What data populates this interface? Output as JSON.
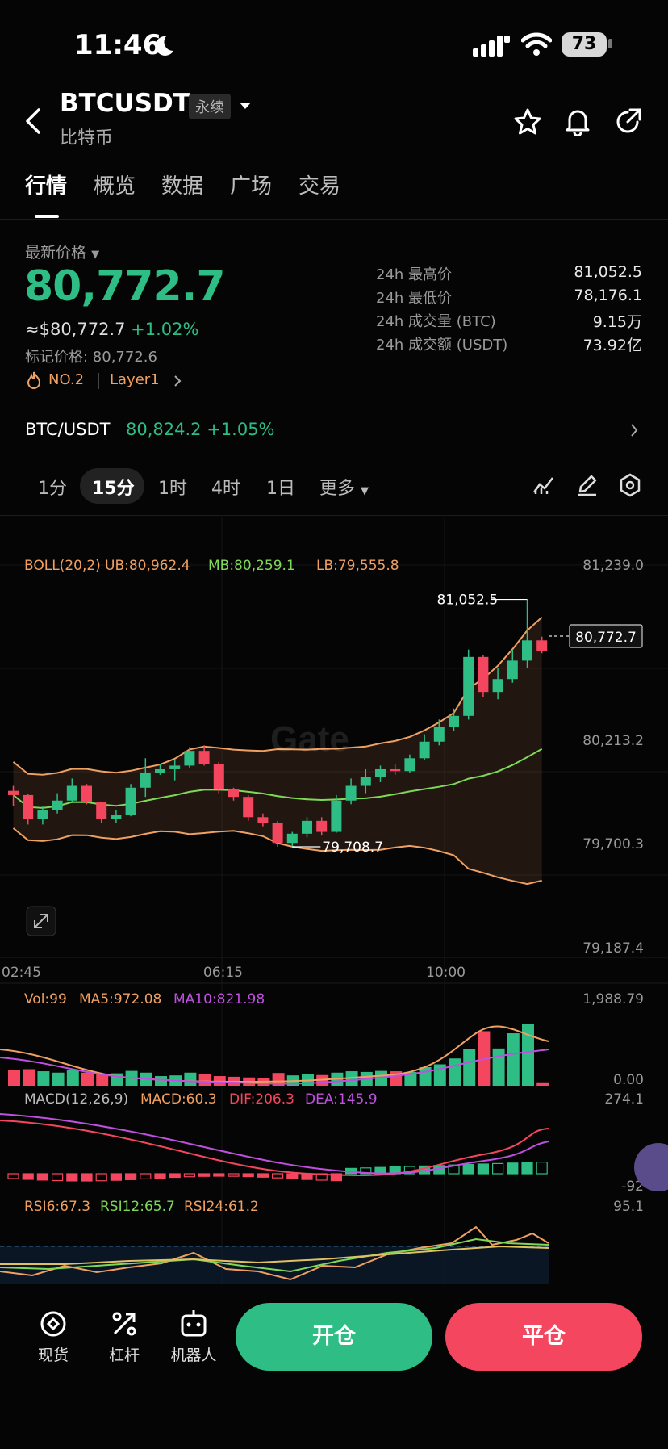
{
  "status": {
    "time": "11:46",
    "battery": "73"
  },
  "header": {
    "title": "BTCUSDT",
    "badge": "永续",
    "subtitle": "比特币"
  },
  "tabs": [
    "行情",
    "概览",
    "数据",
    "广场",
    "交易"
  ],
  "ticker": {
    "latest_label": "最新价格",
    "price": "80,772.7",
    "usd_price": "≈$80,772.7",
    "change": "+1.02%",
    "mark_price": "标记价格: 80,772.6",
    "tags": [
      "NO.2",
      "Layer1"
    ],
    "stats": [
      {
        "label": "24h 最高价",
        "value": "81,052.5"
      },
      {
        "label": "24h 最低价",
        "value": "78,176.1"
      },
      {
        "label": "24h 成交量 (BTC)",
        "value": "9.15万"
      },
      {
        "label": "24h 成交额 (USDT)",
        "value": "73.92亿"
      }
    ],
    "spot_pair": "BTC/USDT",
    "spot_price": "80,824.2",
    "spot_change": "+1.05%"
  },
  "intervals": [
    "1分",
    "15分",
    "1时",
    "4时",
    "1日",
    "更多"
  ],
  "colors": {
    "up": "#2dbd85",
    "down": "#f4465e",
    "accent_orange": "#f0a060"
  },
  "chart_data": {
    "type": "candlestick",
    "boll_legend": {
      "label": "BOLL(20,2)",
      "ub": "UB:80,962.4",
      "mb": "MB:80,259.1",
      "lb": "LB:79,555.8"
    },
    "y_ticks": [
      "81,239.0",
      "80,213.2",
      "79,700.3",
      "79,187.4"
    ],
    "x_ticks": [
      "02:45",
      "06:15",
      "10:00"
    ],
    "high_label": "81,052.5",
    "low_label": "79,708.7",
    "last_price_label": "80,772.7",
    "ylim": [
      79187.4,
      81239.0
    ],
    "watermark": "Gate",
    "candles": [
      {
        "o": 80013,
        "h": 80040,
        "l": 79930,
        "c": 79990
      },
      {
        "o": 79990,
        "h": 79995,
        "l": 79830,
        "c": 79860
      },
      {
        "o": 79860,
        "h": 79930,
        "l": 79830,
        "c": 79910
      },
      {
        "o": 79910,
        "h": 80000,
        "l": 79890,
        "c": 79960
      },
      {
        "o": 79960,
        "h": 80080,
        "l": 79950,
        "c": 80040
      },
      {
        "o": 80040,
        "h": 80050,
        "l": 79940,
        "c": 79950
      },
      {
        "o": 79950,
        "h": 79955,
        "l": 79840,
        "c": 79860
      },
      {
        "o": 79860,
        "h": 79910,
        "l": 79840,
        "c": 79880
      },
      {
        "o": 79880,
        "h": 80050,
        "l": 79875,
        "c": 80030
      },
      {
        "o": 80030,
        "h": 80190,
        "l": 79980,
        "c": 80110
      },
      {
        "o": 80110,
        "h": 80160,
        "l": 80100,
        "c": 80130
      },
      {
        "o": 80130,
        "h": 80180,
        "l": 80070,
        "c": 80150
      },
      {
        "o": 80150,
        "h": 80250,
        "l": 80140,
        "c": 80230
      },
      {
        "o": 80230,
        "h": 80260,
        "l": 80150,
        "c": 80160
      },
      {
        "o": 80160,
        "h": 80170,
        "l": 80000,
        "c": 80020
      },
      {
        "o": 80020,
        "h": 80030,
        "l": 79960,
        "c": 79980
      },
      {
        "o": 79980,
        "h": 79990,
        "l": 79850,
        "c": 79870
      },
      {
        "o": 79870,
        "h": 79890,
        "l": 79820,
        "c": 79840
      },
      {
        "o": 79840,
        "h": 79850,
        "l": 79710,
        "c": 79730
      },
      {
        "o": 79730,
        "h": 79790,
        "l": 79709,
        "c": 79780
      },
      {
        "o": 79780,
        "h": 79870,
        "l": 79760,
        "c": 79850
      },
      {
        "o": 79850,
        "h": 79870,
        "l": 79770,
        "c": 79790
      },
      {
        "o": 79790,
        "h": 79990,
        "l": 79785,
        "c": 79960
      },
      {
        "o": 79960,
        "h": 80080,
        "l": 79940,
        "c": 80040
      },
      {
        "o": 80040,
        "h": 80130,
        "l": 80000,
        "c": 80090
      },
      {
        "o": 80090,
        "h": 80150,
        "l": 80060,
        "c": 80130
      },
      {
        "o": 80130,
        "h": 80160,
        "l": 80100,
        "c": 80120
      },
      {
        "o": 80120,
        "h": 80210,
        "l": 80110,
        "c": 80190
      },
      {
        "o": 80190,
        "h": 80320,
        "l": 80180,
        "c": 80280
      },
      {
        "o": 80280,
        "h": 80400,
        "l": 80260,
        "c": 80360
      },
      {
        "o": 80360,
        "h": 80460,
        "l": 80340,
        "c": 80420
      },
      {
        "o": 80420,
        "h": 80780,
        "l": 80400,
        "c": 80740
      },
      {
        "o": 80740,
        "h": 80750,
        "l": 80520,
        "c": 80550
      },
      {
        "o": 80550,
        "h": 80680,
        "l": 80510,
        "c": 80620
      },
      {
        "o": 80620,
        "h": 80780,
        "l": 80600,
        "c": 80720
      },
      {
        "o": 80720,
        "h": 81052.5,
        "l": 80680,
        "c": 80830
      },
      {
        "o": 80830,
        "h": 80850,
        "l": 80760,
        "c": 80772.7
      }
    ],
    "volume": {
      "legend": {
        "vol": "Vol:99",
        "ma5": "MA5:972.08",
        "ma10": "MA10:821.98"
      },
      "y_ticks": [
        "1,988.79",
        "0.00"
      ],
      "max": 1988.79,
      "values": [
        450,
        480,
        420,
        380,
        460,
        380,
        350,
        360,
        430,
        380,
        280,
        300,
        380,
        330,
        280,
        260,
        240,
        230,
        370,
        300,
        330,
        310,
        380,
        420,
        400,
        430,
        420,
        400,
        540,
        620,
        790,
        1060,
        1580,
        1080,
        1520,
        1780,
        99
      ]
    },
    "macd": {
      "legend": {
        "label": "MACD(12,26,9)",
        "macd": "MACD:60.3",
        "dif": "DIF:206.3",
        "dea": "DEA:145.9"
      },
      "y_ticks": [
        "274.1",
        "-92"
      ]
    },
    "rsi": {
      "legend": {
        "rsi6": "RSI6:67.3",
        "rsi12": "RSI12:65.7",
        "rsi24": "RSI24:61.2"
      },
      "y_ticks": [
        "95.1"
      ]
    }
  },
  "bottom_nav": {
    "spot": "现货",
    "leverage": "杠杆",
    "bot": "机器人",
    "open": "开仓",
    "close": "平仓"
  }
}
